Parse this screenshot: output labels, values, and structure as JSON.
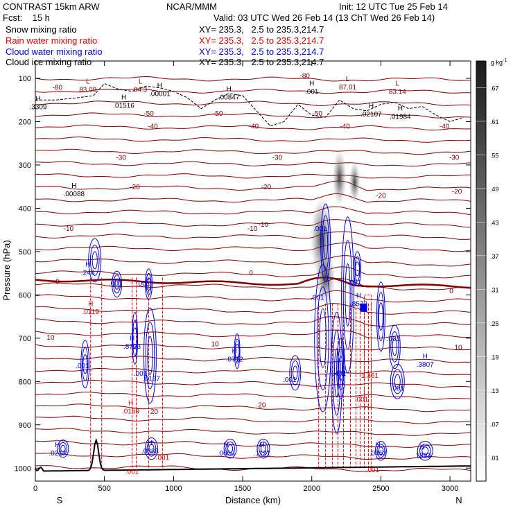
{
  "header": {
    "model": "CONTRAST 15km ARW",
    "center": "NCAR/MMM",
    "init": "Init: 12 UTC Tue 25 Feb 14",
    "fcst": "Fcst:    15 h",
    "valid": "Valid: 03 UTC Wed 26 Feb 14 (13 ChT Wed 26 Feb 14)",
    "fields": [
      {
        "label": "Snow mixing ratio",
        "xy": "XY= 235.3,   2.5 to 235.3,214.7",
        "color": "#000000"
      },
      {
        "label": "Rain water mixing ratio",
        "xy": "XY= 235.3,   2.5 to 235.3,214.7",
        "color": "#e00000"
      },
      {
        "label": "Cloud water mixing ratio",
        "xy": "XY= 235.3,   2.5 to 235.3,214.7",
        "color": "#0000e0"
      },
      {
        "label": "Cloud ice mixing ratio",
        "xy": "XY= 235.3,   2.5 to 235.3,214.7",
        "color": "#000000"
      }
    ]
  },
  "chart_data": {
    "type": "cross-section",
    "xlabel": "Distance (km)",
    "ylabel": "Pressure (hPa)",
    "xlim": [
      0,
      3150
    ],
    "ylim": [
      1030,
      60
    ],
    "x_ticks": [
      0,
      500,
      1000,
      1500,
      2000,
      2500,
      3000
    ],
    "y_ticks": [
      100,
      200,
      300,
      400,
      500,
      600,
      700,
      800,
      900,
      1000
    ],
    "x_end_labels": {
      "left": "S",
      "right": "N"
    },
    "colorbar": {
      "unit": "g kg",
      "unit_exp": "-1",
      "ticks": [
        ".01",
        ".07",
        ".13",
        ".19",
        ".25",
        ".31",
        ".37",
        ".43",
        ".49",
        ".55",
        ".61",
        ".67"
      ]
    },
    "temperature_contours": [
      {
        "label": "-80",
        "p": 120
      },
      {
        "label": "-50",
        "p": 183
      },
      {
        "label": "-40",
        "p": 210
      },
      {
        "label": "-30",
        "p": 285
      },
      {
        "label": "-20",
        "p": 355
      },
      {
        "label": "-10",
        "p": 450
      },
      {
        "label": "0",
        "p": 562
      },
      {
        "label": "10",
        "p": 722
      },
      {
        "label": "20",
        "p": 875
      }
    ],
    "temperature_labels": [
      {
        "text": "-80",
        "x": 160,
        "p": 120
      },
      {
        "text": "-80",
        "x": 1950,
        "p": 93
      },
      {
        "text": "-50",
        "x": 820,
        "p": 180
      },
      {
        "text": "-50",
        "x": 1320,
        "p": 180
      },
      {
        "text": "-50",
        "x": 2040,
        "p": 180
      },
      {
        "text": "-40",
        "x": 850,
        "p": 210
      },
      {
        "text": "-40",
        "x": 1580,
        "p": 210
      },
      {
        "text": "-40",
        "x": 2240,
        "p": 210
      },
      {
        "text": "-40",
        "x": 2960,
        "p": 210
      },
      {
        "text": "-30",
        "x": 620,
        "p": 282
      },
      {
        "text": "-30",
        "x": 1750,
        "p": 282
      },
      {
        "text": "-30",
        "x": 3030,
        "p": 282
      },
      {
        "text": "-20",
        "x": 720,
        "p": 350
      },
      {
        "text": "-20",
        "x": 1670,
        "p": 350
      },
      {
        "text": "-20",
        "x": 2500,
        "p": 370
      },
      {
        "text": "-20",
        "x": 3050,
        "p": 360
      },
      {
        "text": "-10",
        "x": 240,
        "p": 446
      },
      {
        "text": "-10",
        "x": 1570,
        "p": 446
      },
      {
        "text": "-10",
        "x": 1650,
        "p": 436
      },
      {
        "text": "0",
        "x": 160,
        "p": 568
      },
      {
        "text": "0",
        "x": 1560,
        "p": 548
      },
      {
        "text": "0",
        "x": 3010,
        "p": 590
      },
      {
        "text": "10",
        "x": 110,
        "p": 697
      },
      {
        "text": "10",
        "x": 1300,
        "p": 712
      },
      {
        "text": "10",
        "x": 3060,
        "p": 720
      },
      {
        "text": "20",
        "x": 860,
        "p": 868
      },
      {
        "text": "20",
        "x": 1640,
        "p": 853
      }
    ],
    "extrema": [
      {
        "kind": "L",
        "value": "83.09",
        "x": 380,
        "p": 115,
        "color": "#800000"
      },
      {
        "kind": "L",
        "value": "84.3",
        "x": 760,
        "p": 115,
        "color": "#800000"
      },
      {
        "kind": "L",
        "value": "87.01",
        "x": 2260,
        "p": 110,
        "color": "#800000"
      },
      {
        "kind": "L",
        "value": "83.14",
        "x": 2620,
        "p": 120,
        "color": "#800000"
      },
      {
        "kind": "H",
        "value": ".00001",
        "x": 900,
        "p": 125,
        "color": "#000000"
      },
      {
        "kind": "H",
        "value": ".00847",
        "x": 1400,
        "p": 133,
        "color": "#000000"
      },
      {
        "kind": "H",
        "value": ".001",
        "x": 2000,
        "p": 120,
        "color": "#000000"
      },
      {
        "kind": "H",
        "value": ".01516",
        "x": 640,
        "p": 152,
        "color": "#000000"
      },
      {
        "kind": "H",
        "value": ".3309",
        "x": 20,
        "p": 155,
        "color": "#000000"
      },
      {
        "kind": "H",
        "value": ".02107",
        "x": 2430,
        "p": 172,
        "color": "#000000"
      },
      {
        "kind": "H",
        "value": ".01984",
        "x": 2640,
        "p": 178,
        "color": "#000000"
      },
      {
        "kind": "H",
        "value": ".00088",
        "x": 280,
        "p": 356,
        "color": "#000000"
      },
      {
        "kind": "H",
        "value": ".246",
        "x": 380,
        "p": 538,
        "color": "#0000e0"
      },
      {
        "kind": "H",
        "value": ".0119",
        "x": 400,
        "p": 628,
        "color": "#e00000"
      },
      {
        "kind": "H",
        "value": ".8723",
        "x": 700,
        "p": 708,
        "color": "#0000e0"
      },
      {
        "kind": "H",
        "value": ".0712",
        "x": 1440,
        "p": 738,
        "color": "#0000e0"
      },
      {
        "kind": "H",
        "value": ".3807",
        "x": 2820,
        "p": 750,
        "color": "#0000e0"
      },
      {
        "kind": "H",
        "value": ".0159",
        "x": 690,
        "p": 858,
        "color": "#e00000"
      },
      {
        "kind": "H",
        "value": ".0217",
        "x": 160,
        "p": 955,
        "color": "#0000e0"
      },
      {
        "kind": "H",
        "value": ".0383",
        "x": 830,
        "p": 950,
        "color": "#0000e0"
      },
      {
        "kind": "H",
        "value": ".0650",
        "x": 1380,
        "p": 955,
        "color": "#0000e0"
      },
      {
        "kind": "H",
        "value": ".1121",
        "x": 1640,
        "p": 955,
        "color": "#0000e0"
      },
      {
        "kind": "H",
        "value": ".0453",
        "x": 2480,
        "p": 955,
        "color": "#0000e0"
      },
      {
        "kind": "H",
        "value": ".1893",
        "x": 2800,
        "p": 960,
        "color": "#0000e0"
      },
      {
        "kind": "H",
        "value": ".8572",
        "x": 2340,
        "p": 610,
        "color": "#0000e0"
      }
    ],
    "small_labels": [
      {
        "text": ".001",
        "x": 580,
        "p": 572,
        "color": "#0000e0"
      },
      {
        "text": ".001",
        "x": 780,
        "p": 572,
        "color": "#0000e0"
      },
      {
        "text": ".001",
        "x": 2060,
        "p": 446,
        "color": "#0000e0"
      },
      {
        "text": ".001",
        "x": 2040,
        "p": 605,
        "color": "#0000e0"
      },
      {
        "text": ".001",
        "x": 2310,
        "p": 570,
        "color": "#0000e0"
      },
      {
        "text": ".001",
        "x": 2590,
        "p": 700,
        "color": "#0000e0"
      },
      {
        "text": ".001",
        "x": 2620,
        "p": 815,
        "color": "#0000e0"
      },
      {
        "text": ".001",
        "x": 1840,
        "p": 795,
        "color": "#0000e0"
      },
      {
        "text": ".001",
        "x": 340,
        "p": 763,
        "color": "#0000e0"
      },
      {
        "text": ".001",
        "x": 760,
        "p": 780,
        "color": "#0000e0"
      },
      {
        "text": ".0137",
        "x": 840,
        "p": 792,
        "color": "#0000e0"
      },
      {
        "text": ".001",
        "x": 920,
        "p": 975,
        "color": "#e00000"
      },
      {
        "text": ".001",
        "x": 700,
        "p": 1007,
        "color": "#e00000"
      },
      {
        "text": ".001",
        "x": 2440,
        "p": 1003,
        "color": "#e00000"
      },
      {
        "text": ".001",
        "x": 2360,
        "p": 840,
        "color": "#e00000"
      },
      {
        "text": ".401",
        "x": 2200,
        "p": 780,
        "color": "#0000e0"
      },
      {
        "text": "1.361",
        "x": 2420,
        "p": 785,
        "color": "#e00000"
      }
    ]
  }
}
